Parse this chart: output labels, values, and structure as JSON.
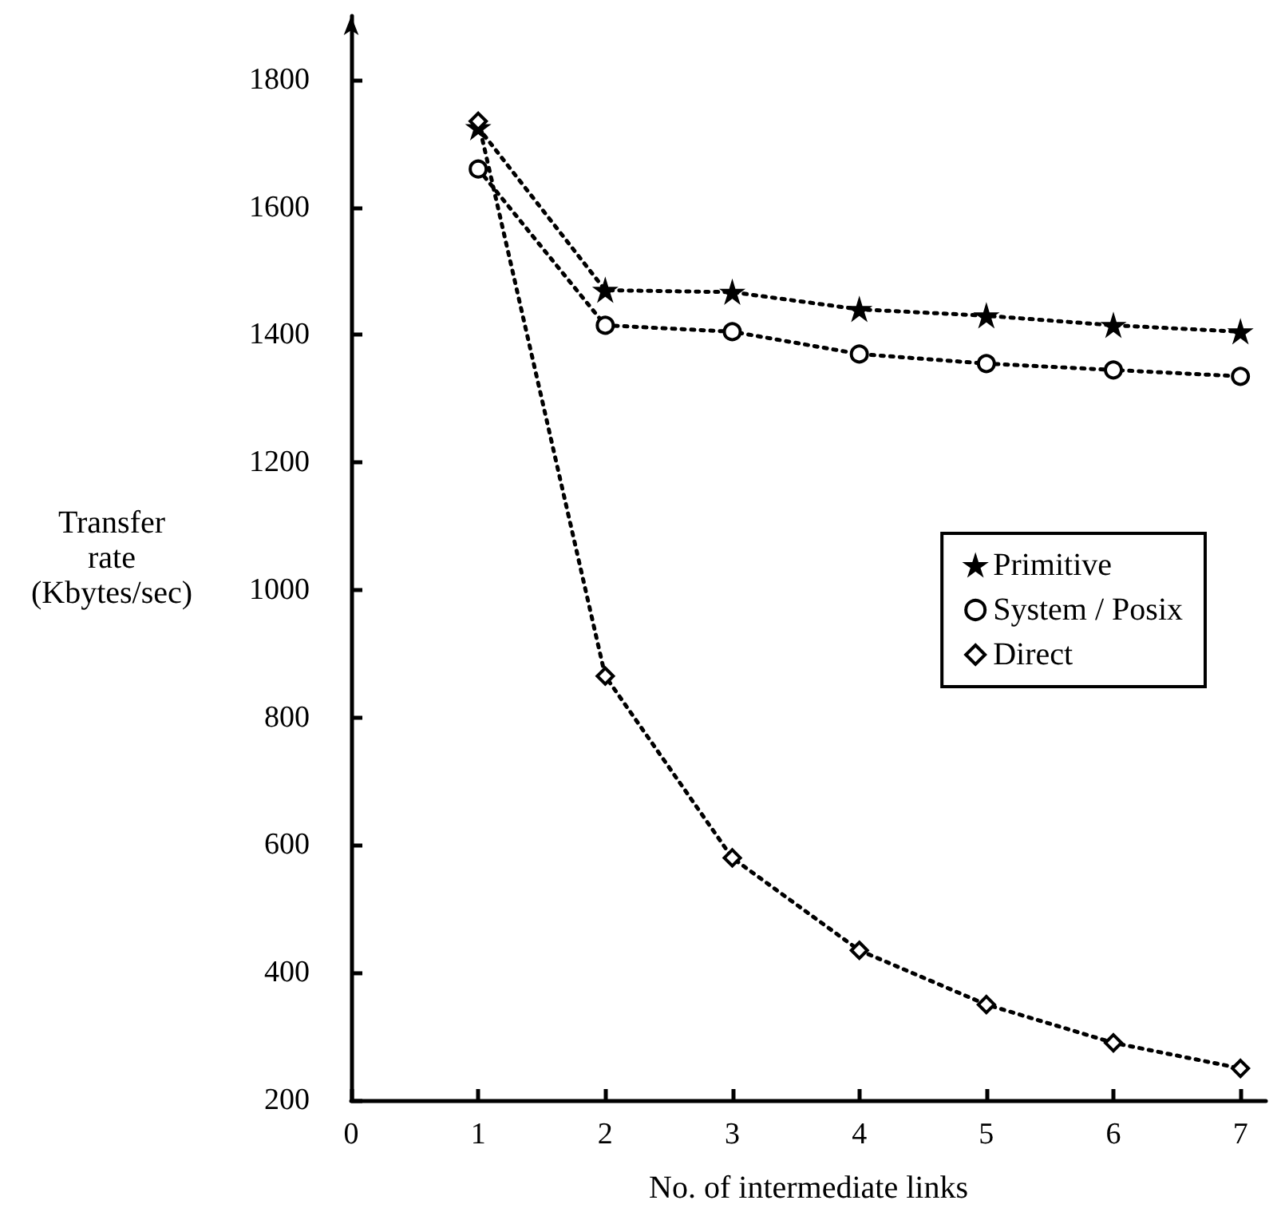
{
  "chart_data": {
    "type": "line",
    "xlabel": "No. of intermediate links",
    "ylabel": "Transfer\nrate\n(Kbytes/sec)",
    "x": [
      1,
      2,
      3,
      4,
      5,
      6,
      7
    ],
    "series": [
      {
        "name": "Primitive",
        "color": "#000000",
        "marker": "star",
        "values": [
          1725,
          1470,
          1467,
          1440,
          1430,
          1415,
          1405
        ]
      },
      {
        "name": "System / Posix",
        "color": "#000000",
        "marker": "circle",
        "values": [
          1660,
          1415,
          1405,
          1370,
          1355,
          1345,
          1335
        ]
      },
      {
        "name": "Direct",
        "color": "#000000",
        "marker": "diamond",
        "values": [
          1735,
          865,
          580,
          435,
          350,
          290,
          250
        ]
      }
    ],
    "xlim": [
      0,
      7.2
    ],
    "xticks": [
      0,
      1,
      2,
      3,
      4,
      5,
      6,
      7
    ],
    "ylim": [
      200,
      1900
    ],
    "yticks": [
      200,
      400,
      600,
      800,
      1000,
      1200,
      1400,
      1600,
      1800
    ],
    "line_style": "dotted",
    "grid": false,
    "legend": "right"
  }
}
